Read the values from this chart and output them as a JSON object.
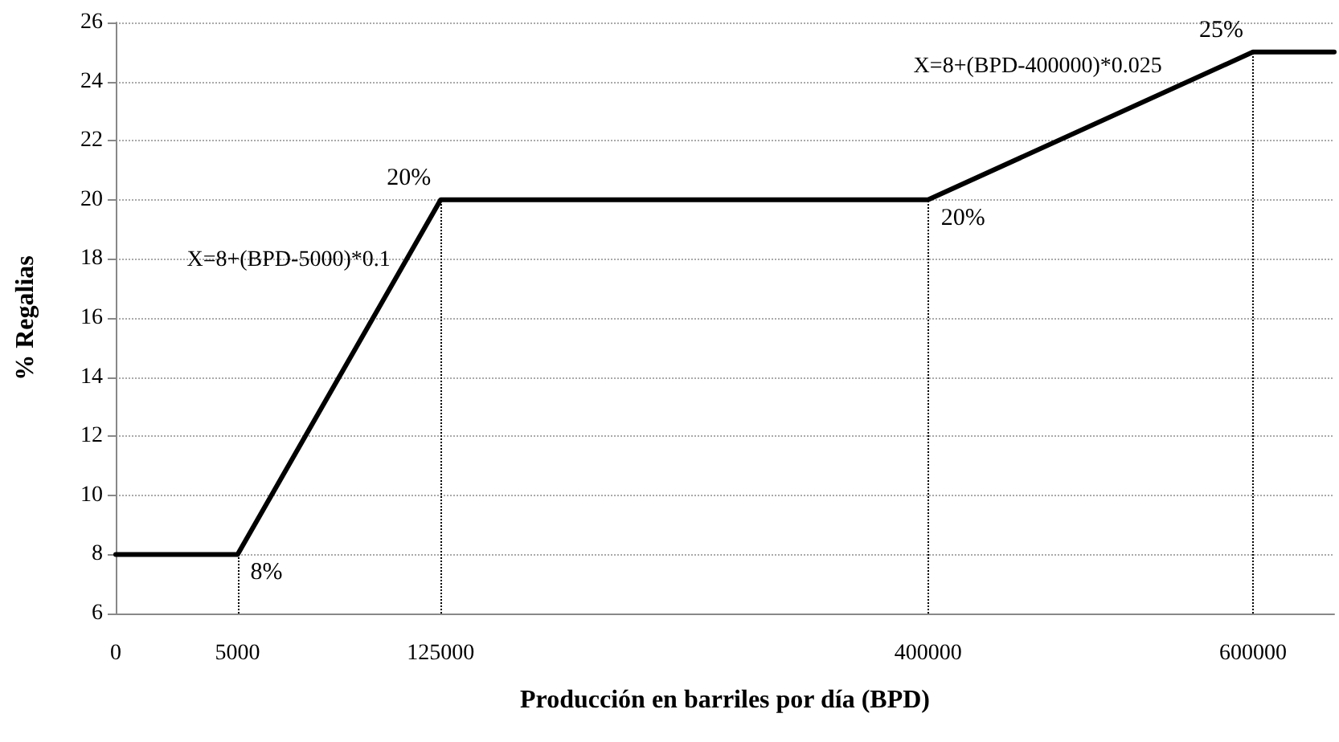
{
  "chart_data": {
    "type": "line",
    "xlabel": "Producción en barriles por día (BPD)",
    "ylabel": "% Regalias",
    "categories": [
      "0",
      null,
      null,
      "5000",
      null,
      null,
      null,
      null,
      "125000",
      null,
      null,
      null,
      null,
      null,
      null,
      null,
      null,
      null,
      null,
      null,
      "400000",
      null,
      null,
      null,
      null,
      null,
      null,
      null,
      "600000",
      null,
      null
    ],
    "series": [
      {
        "color": "#000000",
        "values": [
          8,
          null,
          null,
          8,
          null,
          null,
          null,
          null,
          20,
          null,
          null,
          null,
          null,
          null,
          null,
          null,
          null,
          null,
          null,
          null,
          20,
          null,
          null,
          null,
          null,
          null,
          null,
          null,
          25,
          null,
          25
        ]
      }
    ],
    "ylim": [
      6,
      26
    ],
    "yticks": [
      6,
      8,
      10,
      12,
      14,
      16,
      18,
      20,
      22,
      24,
      26
    ],
    "grid": "y",
    "marker": "none",
    "line_style": "solid",
    "ref_lines": [
      {
        "axis": "x",
        "value": "5000",
        "line_style": "dotted",
        "color": "#000000"
      },
      {
        "axis": "x",
        "value": "125000",
        "line_style": "dotted",
        "color": "#000000"
      },
      {
        "axis": "x",
        "value": "400000",
        "line_style": "dotted",
        "color": "#000000"
      },
      {
        "axis": "x",
        "value": "600000",
        "line_style": "dotted",
        "color": "#000000"
      }
    ],
    "annotations": [
      {
        "text": "8%",
        "x": "5000",
        "y": 8
      },
      {
        "text": "20%",
        "x": "125000",
        "y": 20
      },
      {
        "text": "20%",
        "x": "400000",
        "y": 20
      },
      {
        "text": "25%",
        "x": "600000",
        "y": 25
      },
      "X=8+(BPD-5000)*0.1",
      "X=8+(BPD-400000)*0.025"
    ]
  }
}
